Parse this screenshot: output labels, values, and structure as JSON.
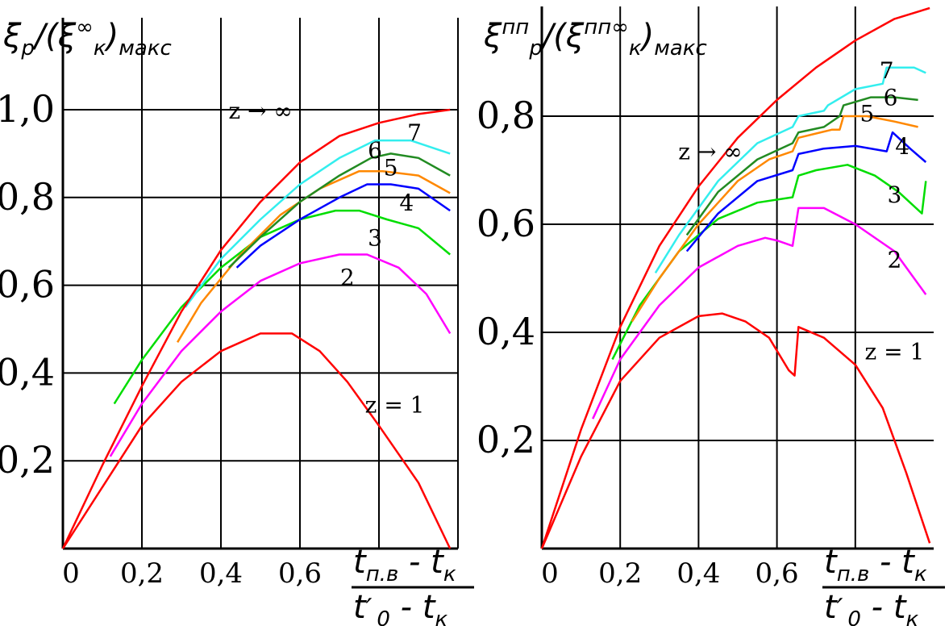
{
  "chart_data": [
    {
      "type": "line",
      "ylabel": {
        "main": "ξ",
        "sub1": "р",
        "mid": "/(ξ",
        "sup": "∞",
        "sub2": "к",
        "close": ")",
        "sub3": "макс"
      },
      "xlabel": {
        "num_a": "t",
        "num_a_sub": "п.в",
        "num_op": " - ",
        "num_b": "t",
        "num_b_sub": "к",
        "den_a": "t",
        "den_a_prime": "′",
        "den_a_sub": "0",
        "den_op": " - ",
        "den_b": "t",
        "den_b_sub": "к"
      },
      "xlim": [
        0,
        1.0
      ],
      "ylim": [
        0,
        1.0
      ],
      "grid": true,
      "x_ticks": [
        {
          "v": 0,
          "label": "0"
        },
        {
          "v": 0.2,
          "label": "0,2"
        },
        {
          "v": 0.4,
          "label": "0,4"
        },
        {
          "v": 0.6,
          "label": "0,6"
        }
      ],
      "y_ticks": [
        {
          "v": 0.2,
          "label": "0,2"
        },
        {
          "v": 0.4,
          "label": "0,4"
        },
        {
          "v": 0.6,
          "label": "0,6"
        },
        {
          "v": 0.8,
          "label": "0,8"
        },
        {
          "v": 1.0,
          "label": "1,0"
        }
      ],
      "series": [
        {
          "name": "z = 1",
          "color": "#ff0000",
          "label_pos": [
            0.84,
            0.31
          ],
          "points": [
            [
              0,
              0
            ],
            [
              0.1,
              0.14
            ],
            [
              0.2,
              0.28
            ],
            [
              0.3,
              0.38
            ],
            [
              0.4,
              0.45
            ],
            [
              0.5,
              0.49
            ],
            [
              0.58,
              0.49
            ],
            [
              0.65,
              0.45
            ],
            [
              0.72,
              0.38
            ],
            [
              0.8,
              0.28
            ],
            [
              0.9,
              0.15
            ],
            [
              0.98,
              0.0
            ]
          ]
        },
        {
          "name": "2",
          "color": "#ff00ff",
          "label_pos": [
            0.72,
            0.6
          ],
          "points": [
            [
              0.12,
              0.21
            ],
            [
              0.2,
              0.33
            ],
            [
              0.3,
              0.45
            ],
            [
              0.4,
              0.54
            ],
            [
              0.5,
              0.61
            ],
            [
              0.6,
              0.65
            ],
            [
              0.7,
              0.67
            ],
            [
              0.77,
              0.67
            ],
            [
              0.85,
              0.64
            ],
            [
              0.92,
              0.58
            ],
            [
              0.98,
              0.49
            ]
          ]
        },
        {
          "name": "3",
          "color": "#00dd00",
          "label_pos": [
            0.79,
            0.69
          ],
          "points": [
            [
              0.13,
              0.33
            ],
            [
              0.2,
              0.43
            ],
            [
              0.3,
              0.55
            ],
            [
              0.4,
              0.64
            ],
            [
              0.5,
              0.71
            ],
            [
              0.6,
              0.75
            ],
            [
              0.69,
              0.77
            ],
            [
              0.75,
              0.77
            ],
            [
              0.82,
              0.75
            ],
            [
              0.9,
              0.73
            ],
            [
              0.98,
              0.67
            ]
          ]
        },
        {
          "name": "4",
          "color": "#0000ff",
          "label_pos": [
            0.87,
            0.77
          ],
          "points": [
            [
              0.44,
              0.64
            ],
            [
              0.5,
              0.69
            ],
            [
              0.6,
              0.75
            ],
            [
              0.7,
              0.8
            ],
            [
              0.77,
              0.83
            ],
            [
              0.83,
              0.83
            ],
            [
              0.9,
              0.82
            ],
            [
              0.98,
              0.77
            ]
          ]
        },
        {
          "name": "5",
          "color": "#ff8800",
          "label_pos": [
            0.83,
            0.85
          ],
          "points": [
            [
              0.29,
              0.47
            ],
            [
              0.35,
              0.56
            ],
            [
              0.45,
              0.67
            ],
            [
              0.55,
              0.76
            ],
            [
              0.65,
              0.82
            ],
            [
              0.75,
              0.86
            ],
            [
              0.81,
              0.86
            ],
            [
              0.9,
              0.85
            ],
            [
              0.98,
              0.81
            ]
          ]
        },
        {
          "name": "6",
          "color": "#228b22",
          "label_pos": [
            0.79,
            0.89
          ],
          "points": [
            [
              0.42,
              0.64
            ],
            [
              0.5,
              0.71
            ],
            [
              0.6,
              0.79
            ],
            [
              0.7,
              0.85
            ],
            [
              0.78,
              0.89
            ],
            [
              0.83,
              0.9
            ],
            [
              0.9,
              0.89
            ],
            [
              0.98,
              0.85
            ]
          ]
        },
        {
          "name": "7",
          "color": "#33eeee",
          "label_pos": [
            0.89,
            0.93
          ],
          "points": [
            [
              0.31,
              0.55
            ],
            [
              0.4,
              0.66
            ],
            [
              0.5,
              0.75
            ],
            [
              0.6,
              0.83
            ],
            [
              0.7,
              0.89
            ],
            [
              0.79,
              0.93
            ],
            [
              0.88,
              0.93
            ],
            [
              0.98,
              0.9
            ]
          ]
        },
        {
          "name": "z → ∞",
          "color": "#ff0000",
          "label_pos": [
            0.5,
            0.98
          ],
          "points": [
            [
              0,
              0
            ],
            [
              0.1,
              0.19
            ],
            [
              0.2,
              0.37
            ],
            [
              0.3,
              0.54
            ],
            [
              0.4,
              0.68
            ],
            [
              0.5,
              0.79
            ],
            [
              0.6,
              0.88
            ],
            [
              0.7,
              0.94
            ],
            [
              0.8,
              0.97
            ],
            [
              0.9,
              0.99
            ],
            [
              0.98,
              1.0
            ]
          ]
        }
      ]
    },
    {
      "type": "line",
      "ylabel": {
        "main": "ξ",
        "sup1": "пп",
        "sub1": "р",
        "mid": "/(ξ",
        "sup": "пп∞",
        "sub2": "к",
        "close": ")",
        "sub3": "макс"
      },
      "xlabel": {
        "num_a": "t",
        "num_a_sub": "п.в",
        "num_op": " - ",
        "num_b": "t",
        "num_b_sub": "к",
        "den_a": "t",
        "den_a_prime": "′",
        "den_a_sub": "0",
        "den_op": " - ",
        "den_b": "t",
        "den_b_sub": "к"
      },
      "xlim": [
        0,
        1.0
      ],
      "ylim": [
        0,
        1.0
      ],
      "grid": true,
      "x_ticks": [
        {
          "v": 0,
          "label": "0"
        },
        {
          "v": 0.2,
          "label": "0,2"
        },
        {
          "v": 0.4,
          "label": "0,4"
        },
        {
          "v": 0.6,
          "label": "0,6"
        }
      ],
      "y_ticks": [
        {
          "v": 0.2,
          "label": "0,2"
        },
        {
          "v": 0.4,
          "label": "0,4"
        },
        {
          "v": 0.6,
          "label": "0,6"
        },
        {
          "v": 0.8,
          "label": "0,8"
        }
      ],
      "series": [
        {
          "name": "z = 1",
          "color": "#ff0000",
          "label_pos": [
            0.9,
            0.35
          ],
          "points": [
            [
              0,
              0
            ],
            [
              0.1,
              0.17
            ],
            [
              0.2,
              0.31
            ],
            [
              0.3,
              0.39
            ],
            [
              0.4,
              0.43
            ],
            [
              0.46,
              0.435
            ],
            [
              0.52,
              0.42
            ],
            [
              0.58,
              0.39
            ],
            [
              0.63,
              0.33
            ],
            [
              0.645,
              0.32
            ],
            [
              0.655,
              0.41
            ],
            [
              0.72,
              0.39
            ],
            [
              0.8,
              0.34
            ],
            [
              0.87,
              0.26
            ],
            [
              0.93,
              0.14
            ],
            [
              0.99,
              0.01
            ]
          ]
        },
        {
          "name": "2",
          "color": "#ff00ff",
          "label_pos": [
            0.9,
            0.52
          ],
          "points": [
            [
              0.13,
              0.24
            ],
            [
              0.2,
              0.35
            ],
            [
              0.3,
              0.45
            ],
            [
              0.4,
              0.52
            ],
            [
              0.5,
              0.56
            ],
            [
              0.57,
              0.575
            ],
            [
              0.6,
              0.57
            ],
            [
              0.64,
              0.56
            ],
            [
              0.655,
              0.63
            ],
            [
              0.72,
              0.63
            ],
            [
              0.8,
              0.6
            ],
            [
              0.9,
              0.55
            ],
            [
              0.98,
              0.47
            ]
          ]
        },
        {
          "name": "3",
          "color": "#00dd00",
          "label_pos": [
            0.9,
            0.64
          ],
          "points": [
            [
              0.18,
              0.35
            ],
            [
              0.25,
              0.45
            ],
            [
              0.35,
              0.55
            ],
            [
              0.45,
              0.61
            ],
            [
              0.55,
              0.64
            ],
            [
              0.64,
              0.65
            ],
            [
              0.655,
              0.69
            ],
            [
              0.7,
              0.7
            ],
            [
              0.78,
              0.71
            ],
            [
              0.85,
              0.69
            ],
            [
              0.91,
              0.66
            ],
            [
              0.97,
              0.62
            ],
            [
              0.98,
              0.68
            ]
          ]
        },
        {
          "name": "4",
          "color": "#0000ff",
          "label_pos": [
            0.92,
            0.73
          ],
          "points": [
            [
              0.37,
              0.55
            ],
            [
              0.45,
              0.62
            ],
            [
              0.55,
              0.68
            ],
            [
              0.64,
              0.7
            ],
            [
              0.655,
              0.73
            ],
            [
              0.72,
              0.74
            ],
            [
              0.8,
              0.745
            ],
            [
              0.88,
              0.735
            ],
            [
              0.895,
              0.77
            ],
            [
              0.94,
              0.74
            ],
            [
              0.98,
              0.715
            ]
          ]
        },
        {
          "name": "5",
          "color": "#ff8800",
          "label_pos": [
            0.83,
            0.79
          ],
          "points": [
            [
              0.23,
              0.42
            ],
            [
              0.3,
              0.5
            ],
            [
              0.4,
              0.6
            ],
            [
              0.5,
              0.68
            ],
            [
              0.58,
              0.72
            ],
            [
              0.64,
              0.735
            ],
            [
              0.655,
              0.76
            ],
            [
              0.74,
              0.775
            ],
            [
              0.76,
              0.775
            ],
            [
              0.77,
              0.8
            ],
            [
              0.83,
              0.8
            ],
            [
              0.9,
              0.79
            ],
            [
              0.96,
              0.78
            ]
          ]
        },
        {
          "name": "6",
          "color": "#228b22",
          "label_pos": [
            0.89,
            0.82
          ],
          "points": [
            [
              0.37,
              0.58
            ],
            [
              0.45,
              0.66
            ],
            [
              0.55,
              0.72
            ],
            [
              0.64,
              0.75
            ],
            [
              0.655,
              0.77
            ],
            [
              0.72,
              0.78
            ],
            [
              0.76,
              0.8
            ],
            [
              0.77,
              0.82
            ],
            [
              0.84,
              0.835
            ],
            [
              0.9,
              0.835
            ],
            [
              0.96,
              0.83
            ]
          ]
        },
        {
          "name": "7",
          "color": "#33eeee",
          "label_pos": [
            0.88,
            0.87
          ],
          "points": [
            [
              0.29,
              0.51
            ],
            [
              0.35,
              0.58
            ],
            [
              0.45,
              0.68
            ],
            [
              0.55,
              0.75
            ],
            [
              0.64,
              0.78
            ],
            [
              0.655,
              0.8
            ],
            [
              0.72,
              0.81
            ],
            [
              0.73,
              0.82
            ],
            [
              0.8,
              0.85
            ],
            [
              0.87,
              0.86
            ],
            [
              0.88,
              0.89
            ],
            [
              0.95,
              0.89
            ],
            [
              0.98,
              0.88
            ]
          ]
        },
        {
          "name": "z → ∞",
          "color": "#ff0000",
          "label_pos": [
            0.43,
            0.72
          ],
          "points": [
            [
              0,
              0
            ],
            [
              0.1,
              0.22
            ],
            [
              0.2,
              0.41
            ],
            [
              0.3,
              0.56
            ],
            [
              0.4,
              0.67
            ],
            [
              0.5,
              0.76
            ],
            [
              0.6,
              0.83
            ],
            [
              0.7,
              0.89
            ],
            [
              0.8,
              0.94
            ],
            [
              0.9,
              0.98
            ],
            [
              0.99,
              1.0
            ]
          ]
        }
      ]
    }
  ]
}
